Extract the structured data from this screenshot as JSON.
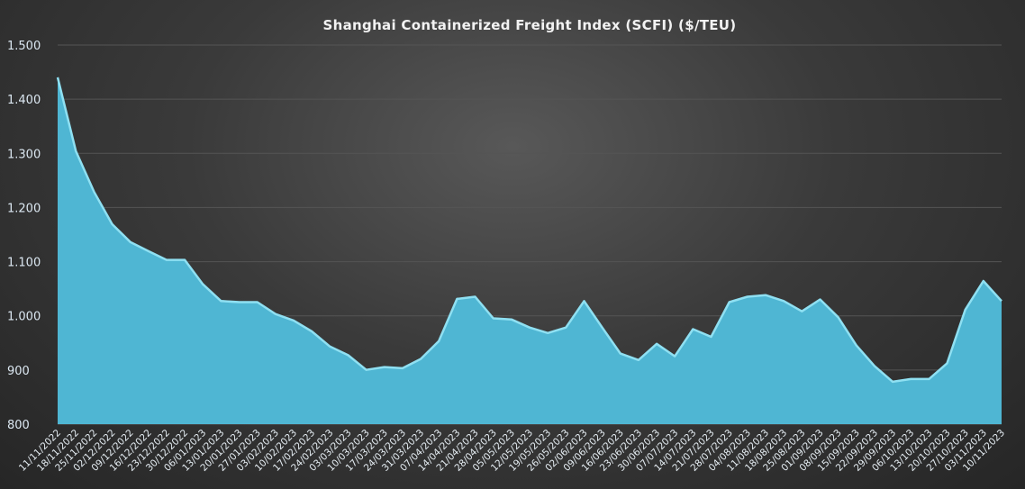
{
  "chart_data": {
    "type": "area",
    "title": "Shanghai  Containerized Freight Index  (SCFI) ($/TEU)",
    "xlabel": "",
    "ylabel": "",
    "ylim": [
      800,
      1500
    ],
    "yticks": [
      800,
      900,
      1000,
      1100,
      1200,
      1300,
      1400,
      1500
    ],
    "ytick_labels": [
      "800",
      "900",
      "1.000",
      "1.100",
      "1.200",
      "1.300",
      "1.400",
      "1.500"
    ],
    "grid": true,
    "legend": "none",
    "colors": {
      "fill": "#4fb6d3",
      "line": "#8fe0f2",
      "grid": "#555555"
    },
    "categories": [
      "11/11/2022",
      "18/11/2022",
      "25/11/2022",
      "02/12/2022",
      "09/12/2022",
      "16/12/2022",
      "23/12/2022",
      "30/12/2022",
      "06/01/2023",
      "13/01/2023",
      "20/01/2023",
      "27/01/2023",
      "03/02/2023",
      "10/02/2023",
      "17/02/2023",
      "24/02/2023",
      "03/03/2023",
      "10/03/2023",
      "17/03/2023",
      "24/03/2023",
      "31/03/2023",
      "07/04/2023",
      "14/04/2023",
      "21/04/2023",
      "28/04/2023",
      "05/05/2023",
      "12/05/2023",
      "19/05/2023",
      "26/05/2023",
      "02/06/2023",
      "09/06/2023",
      "16/06/2023",
      "23/06/2023",
      "30/06/2023",
      "07/07/2023",
      "14/07/2023",
      "21/07/2023",
      "28/07/2023",
      "04/08/2023",
      "11/08/2023",
      "18/08/2023",
      "25/08/2023",
      "01/09/2023",
      "08/09/2023",
      "15/09/2023",
      "22/09/2023",
      "29/09/2023",
      "06/10/2023",
      "13/10/2023",
      "20/10/2023",
      "27/10/2023",
      "03/11/2023",
      "10/11/2023"
    ],
    "values": [
      1442,
      1306,
      1231,
      1171,
      1138,
      1121,
      1105,
      1105,
      1060,
      1029,
      1027,
      1027,
      1005,
      993,
      973,
      945,
      929,
      902,
      907,
      905,
      922,
      955,
      1033,
      1037,
      997,
      995,
      980,
      970,
      980,
      1029,
      980,
      932,
      920,
      950,
      927,
      977,
      963,
      1027,
      1037,
      1040,
      1029,
      1010,
      1032,
      999,
      947,
      909,
      880,
      885,
      885,
      914,
      1013,
      1066,
      1029
    ]
  }
}
